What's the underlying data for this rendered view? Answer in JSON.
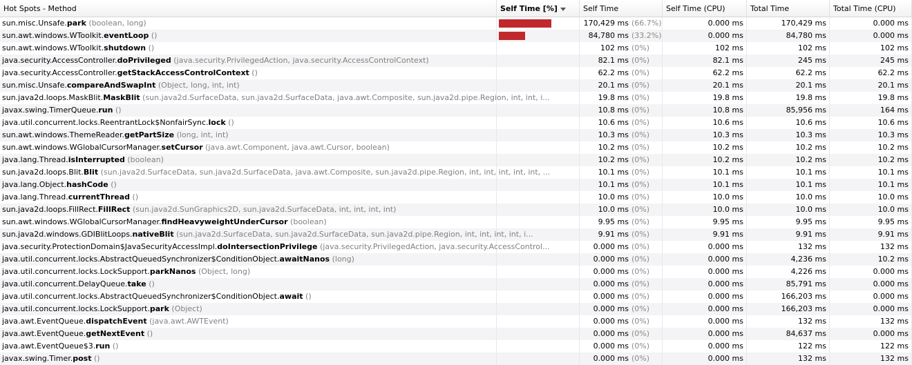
{
  "columns": [
    "Hot Spots - Method",
    "Self Time [%]",
    "Self Time",
    "Self Time (CPU)",
    "Total Time",
    "Total Time (CPU)"
  ],
  "sorted_column": "Self Time [%]",
  "rows": [
    {
      "pre": "sun.misc.Unsafe.",
      "name": "park",
      "args": " (boolean, long)",
      "pct_fill": 0.667,
      "self": "170,429 ms",
      "pct": "(66.7%)",
      "cpu": "0.000 ms",
      "total": "170,429 ms",
      "total_cpu": "0.000 ms"
    },
    {
      "pre": "sun.awt.windows.WToolkit.",
      "name": "eventLoop",
      "args": " ()",
      "pct_fill": 0.332,
      "self": "84,780 ms",
      "pct": "(33.2%)",
      "cpu": "0.000 ms",
      "total": "84,780 ms",
      "total_cpu": "0.000 ms"
    },
    {
      "pre": "sun.awt.windows.WToolkit.",
      "name": "shutdown",
      "args": " ()",
      "pct_fill": 0,
      "self": "102 ms",
      "pct": "(0%)",
      "cpu": "102 ms",
      "total": "102 ms",
      "total_cpu": "102 ms"
    },
    {
      "pre": "java.security.AccessController.",
      "name": "doPrivileged",
      "args": " (java.security.PrivilegedAction, java.security.AccessControlContext)",
      "pct_fill": 0,
      "self": "82.1 ms",
      "pct": "(0%)",
      "cpu": "82.1 ms",
      "total": "245 ms",
      "total_cpu": "245 ms"
    },
    {
      "pre": "java.security.AccessController.",
      "name": "getStackAccessControlContext",
      "args": " ()",
      "pct_fill": 0,
      "self": "62.2 ms",
      "pct": "(0%)",
      "cpu": "62.2 ms",
      "total": "62.2 ms",
      "total_cpu": "62.2 ms"
    },
    {
      "pre": "sun.misc.Unsafe.",
      "name": "compareAndSwapInt",
      "args": " (Object, long, int, int)",
      "pct_fill": 0,
      "self": "20.1 ms",
      "pct": "(0%)",
      "cpu": "20.1 ms",
      "total": "20.1 ms",
      "total_cpu": "20.1 ms"
    },
    {
      "pre": "sun.java2d.loops.MaskBlit.",
      "name": "MaskBlit",
      "args": " (sun.java2d.SurfaceData, sun.java2d.SurfaceData, java.awt.Composite, sun.java2d.pipe.Region, int, int, i...",
      "pct_fill": 0,
      "self": "19.8 ms",
      "pct": "(0%)",
      "cpu": "19.8 ms",
      "total": "19.8 ms",
      "total_cpu": "19.8 ms"
    },
    {
      "pre": "javax.swing.TimerQueue.",
      "name": "run",
      "args": " ()",
      "pct_fill": 0,
      "self": "10.8 ms",
      "pct": "(0%)",
      "cpu": "10.8 ms",
      "total": "85,956 ms",
      "total_cpu": "164 ms"
    },
    {
      "pre": "java.util.concurrent.locks.ReentrantLock$NonfairSync.",
      "name": "lock",
      "args": " ()",
      "pct_fill": 0,
      "self": "10.6 ms",
      "pct": "(0%)",
      "cpu": "10.6 ms",
      "total": "10.6 ms",
      "total_cpu": "10.6 ms"
    },
    {
      "pre": "sun.awt.windows.ThemeReader.",
      "name": "getPartSize",
      "args": " (long, int, int)",
      "pct_fill": 0,
      "self": "10.3 ms",
      "pct": "(0%)",
      "cpu": "10.3 ms",
      "total": "10.3 ms",
      "total_cpu": "10.3 ms"
    },
    {
      "pre": "sun.awt.windows.WGlobalCursorManager.",
      "name": "setCursor",
      "args": " (java.awt.Component, java.awt.Cursor, boolean)",
      "pct_fill": 0,
      "self": "10.2 ms",
      "pct": "(0%)",
      "cpu": "10.2 ms",
      "total": "10.2 ms",
      "total_cpu": "10.2 ms"
    },
    {
      "pre": "java.lang.Thread.",
      "name": "isInterrupted",
      "args": " (boolean)",
      "pct_fill": 0,
      "self": "10.2 ms",
      "pct": "(0%)",
      "cpu": "10.2 ms",
      "total": "10.2 ms",
      "total_cpu": "10.2 ms"
    },
    {
      "pre": "sun.java2d.loops.Blit.",
      "name": "Blit",
      "args": " (sun.java2d.SurfaceData, sun.java2d.SurfaceData, java.awt.Composite, sun.java2d.pipe.Region, int, int, int, int, int, ...",
      "pct_fill": 0,
      "self": "10.1 ms",
      "pct": "(0%)",
      "cpu": "10.1 ms",
      "total": "10.1 ms",
      "total_cpu": "10.1 ms"
    },
    {
      "pre": "java.lang.Object.",
      "name": "hashCode",
      "args": " ()",
      "pct_fill": 0,
      "self": "10.1 ms",
      "pct": "(0%)",
      "cpu": "10.1 ms",
      "total": "10.1 ms",
      "total_cpu": "10.1 ms"
    },
    {
      "pre": "java.lang.Thread.",
      "name": "currentThread",
      "args": " ()",
      "pct_fill": 0,
      "self": "10.0 ms",
      "pct": "(0%)",
      "cpu": "10.0 ms",
      "total": "10.0 ms",
      "total_cpu": "10.0 ms"
    },
    {
      "pre": "sun.java2d.loops.FillRect.",
      "name": "FillRect",
      "args": " (sun.java2d.SunGraphics2D, sun.java2d.SurfaceData, int, int, int, int)",
      "pct_fill": 0,
      "self": "10.0 ms",
      "pct": "(0%)",
      "cpu": "10.0 ms",
      "total": "10.0 ms",
      "total_cpu": "10.0 ms"
    },
    {
      "pre": "sun.awt.windows.WGlobalCursorManager.",
      "name": "findHeavyweightUnderCursor",
      "args": " (boolean)",
      "pct_fill": 0,
      "self": "9.95 ms",
      "pct": "(0%)",
      "cpu": "9.95 ms",
      "total": "9.95 ms",
      "total_cpu": "9.95 ms"
    },
    {
      "pre": "sun.java2d.windows.GDIBlitLoops.",
      "name": "nativeBlit",
      "args": " (sun.java2d.SurfaceData, sun.java2d.SurfaceData, sun.java2d.pipe.Region, int, int, int, int, i...",
      "pct_fill": 0,
      "self": "9.91 ms",
      "pct": "(0%)",
      "cpu": "9.91 ms",
      "total": "9.91 ms",
      "total_cpu": "9.91 ms"
    },
    {
      "pre": "java.security.ProtectionDomain$JavaSecurityAccessImpl.",
      "name": "doIntersectionPrivilege",
      "args": " (java.security.PrivilegedAction, java.security.AccessControl...",
      "pct_fill": 0,
      "self": "0.000 ms",
      "pct": "(0%)",
      "cpu": "0.000 ms",
      "total": "132 ms",
      "total_cpu": "132 ms"
    },
    {
      "pre": "java.util.concurrent.locks.AbstractQueuedSynchronizer$ConditionObject.",
      "name": "awaitNanos",
      "args": " (long)",
      "pct_fill": 0,
      "self": "0.000 ms",
      "pct": "(0%)",
      "cpu": "0.000 ms",
      "total": "4,236 ms",
      "total_cpu": "10.2 ms"
    },
    {
      "pre": "java.util.concurrent.locks.LockSupport.",
      "name": "parkNanos",
      "args": " (Object, long)",
      "pct_fill": 0,
      "self": "0.000 ms",
      "pct": "(0%)",
      "cpu": "0.000 ms",
      "total": "4,226 ms",
      "total_cpu": "0.000 ms"
    },
    {
      "pre": "java.util.concurrent.DelayQueue.",
      "name": "take",
      "args": " ()",
      "pct_fill": 0,
      "self": "0.000 ms",
      "pct": "(0%)",
      "cpu": "0.000 ms",
      "total": "85,791 ms",
      "total_cpu": "0.000 ms"
    },
    {
      "pre": "java.util.concurrent.locks.AbstractQueuedSynchronizer$ConditionObject.",
      "name": "await",
      "args": " ()",
      "pct_fill": 0,
      "self": "0.000 ms",
      "pct": "(0%)",
      "cpu": "0.000 ms",
      "total": "166,203 ms",
      "total_cpu": "0.000 ms"
    },
    {
      "pre": "java.util.concurrent.locks.LockSupport.",
      "name": "park",
      "args": " (Object)",
      "pct_fill": 0,
      "self": "0.000 ms",
      "pct": "(0%)",
      "cpu": "0.000 ms",
      "total": "166,203 ms",
      "total_cpu": "0.000 ms"
    },
    {
      "pre": "java.awt.EventQueue.",
      "name": "dispatchEvent",
      "args": " (java.awt.AWTEvent)",
      "pct_fill": 0,
      "self": "0.000 ms",
      "pct": "(0%)",
      "cpu": "0.000 ms",
      "total": "132 ms",
      "total_cpu": "132 ms"
    },
    {
      "pre": "java.awt.EventQueue.",
      "name": "getNextEvent",
      "args": " ()",
      "pct_fill": 0,
      "self": "0.000 ms",
      "pct": "(0%)",
      "cpu": "0.000 ms",
      "total": "84,637 ms",
      "total_cpu": "0.000 ms"
    },
    {
      "pre": "java.awt.EventQueue$3.",
      "name": "run",
      "args": " ()",
      "pct_fill": 0,
      "self": "0.000 ms",
      "pct": "(0%)",
      "cpu": "0.000 ms",
      "total": "122 ms",
      "total_cpu": "122 ms"
    },
    {
      "pre": "javax.swing.Timer.",
      "name": "post",
      "args": " ()",
      "pct_fill": 0,
      "self": "0.000 ms",
      "pct": "(0%)",
      "cpu": "0.000 ms",
      "total": "132 ms",
      "total_cpu": "132 ms"
    }
  ],
  "colors": {
    "bar": "#c0282d",
    "row_alt": "#f4f4f6",
    "args": "#808080"
  }
}
